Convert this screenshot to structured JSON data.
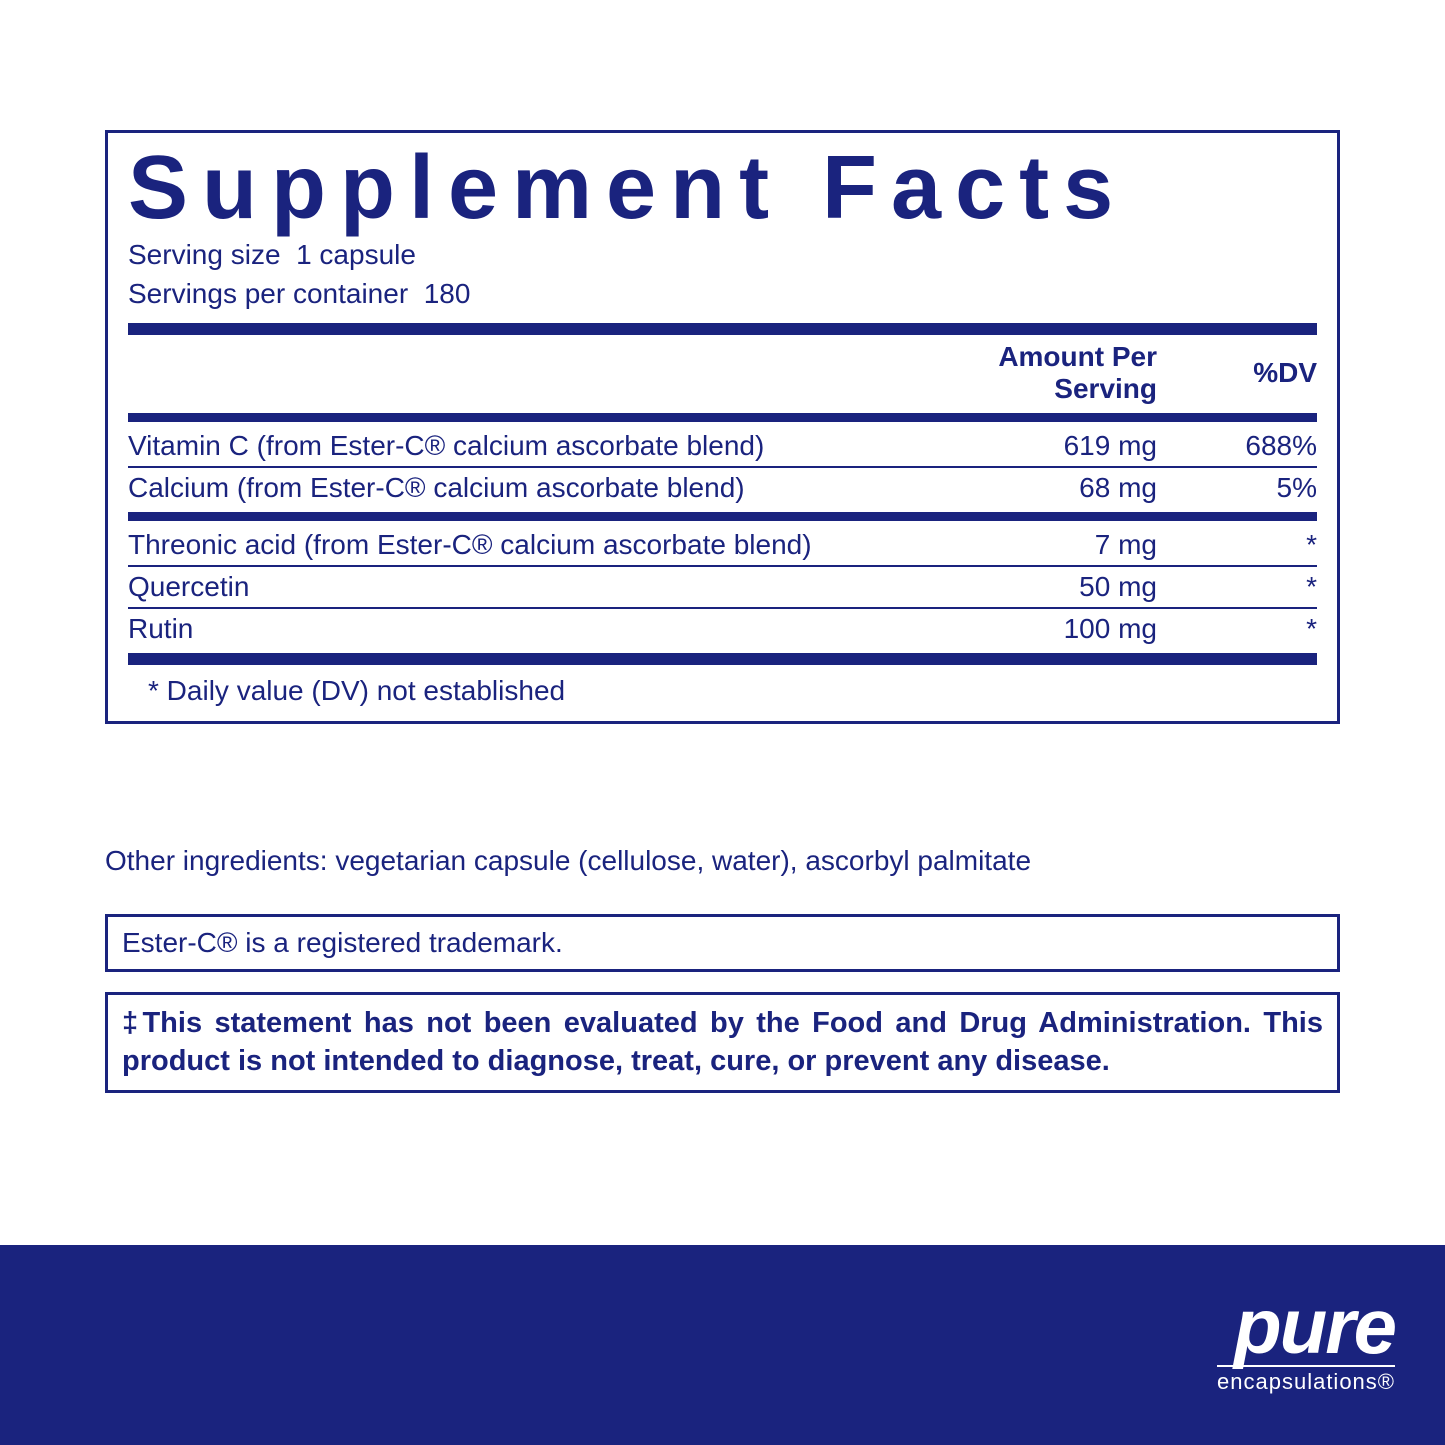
{
  "colors": {
    "primary": "#1a237e",
    "background": "#ffffff",
    "brand_text": "#ffffff"
  },
  "panel": {
    "title": "Supplement Facts",
    "serving_size_label": "Serving size",
    "serving_size_value": "1 capsule",
    "servings_per_container_label": "Servings per container",
    "servings_per_container_value": "180",
    "header_amount": "Amount Per Serving",
    "header_dv": "%DV",
    "rows_group1": [
      {
        "name": "Vitamin C (from Ester-C® calcium ascorbate blend)",
        "amount": "619 mg",
        "dv": "688%"
      },
      {
        "name": "Calcium (from Ester-C® calcium ascorbate blend)",
        "amount": "68 mg",
        "dv": "5%"
      }
    ],
    "rows_group2": [
      {
        "name": "Threonic acid (from Ester-C® calcium ascorbate blend)",
        "amount": "7 mg",
        "dv": "*"
      },
      {
        "name": "Quercetin",
        "amount": "50 mg",
        "dv": "*"
      },
      {
        "name": "Rutin",
        "amount": "100 mg",
        "dv": "*"
      }
    ],
    "footnote": "* Daily value (DV) not established"
  },
  "other_ingredients": "Other ingredients: vegetarian capsule (cellulose, water), ascorbyl palmitate",
  "trademark": "Ester-C® is a registered trademark.",
  "disclaimer": "‡This statement has not been evaluated by the Food and Drug Administration. This product is not intended to diagnose, treat, cure, or prevent any disease.",
  "brand": {
    "main": "pure",
    "sub": "encapsulations®"
  }
}
